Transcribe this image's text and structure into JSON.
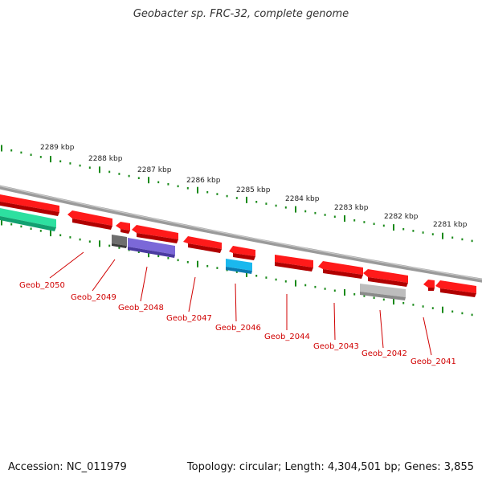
{
  "title": "Geobacter sp. FRC-32, complete genome",
  "footer": {
    "accession": "Accession: NC_011979",
    "summary": "Topology: circular; Length: 4,304,501 bp; Genes: 3,855"
  },
  "colors": {
    "backbone": "#8a8a8a",
    "ticks": "#1a8a1a",
    "gene_red": "#ff1a1a",
    "gene_purple": "#7b68d8",
    "gene_cyan": "#1ab8ee",
    "gene_gray_dark": "#6e6e6e",
    "gene_gray_light": "#bdbdbd",
    "gene_green": "#2de0a0",
    "label": "#d00000"
  },
  "scale_labels": [
    "2289 kbp",
    "2288 kbp",
    "2287 kbp",
    "2286 kbp",
    "2285 kbp",
    "2284 kbp",
    "2283 kbp",
    "2282 kbp",
    "2281 kbp"
  ],
  "gene_labels": [
    "Geob_2050",
    "Geob_2049",
    "Geob_2048",
    "Geob_2047",
    "Geob_2046",
    "Geob_2044",
    "Geob_2043",
    "Geob_2042",
    "Geob_2041"
  ]
}
